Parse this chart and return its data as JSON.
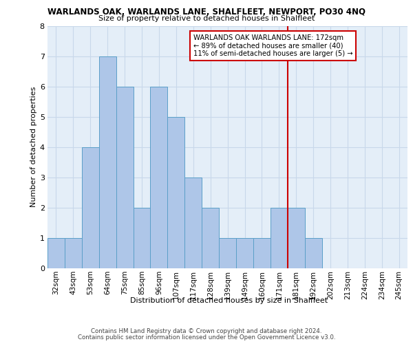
{
  "title": "WARLANDS OAK, WARLANDS LANE, SHALFLEET, NEWPORT, PO30 4NQ",
  "subtitle": "Size of property relative to detached houses in Shalfleet",
  "xlabel": "Distribution of detached houses by size in Shalfleet",
  "ylabel": "Number of detached properties",
  "categories": [
    "32sqm",
    "43sqm",
    "53sqm",
    "64sqm",
    "75sqm",
    "85sqm",
    "96sqm",
    "107sqm",
    "117sqm",
    "128sqm",
    "139sqm",
    "149sqm",
    "160sqm",
    "171sqm",
    "181sqm",
    "192sqm",
    "202sqm",
    "213sqm",
    "224sqm",
    "234sqm",
    "245sqm"
  ],
  "values": [
    1,
    1,
    4,
    7,
    6,
    2,
    6,
    5,
    3,
    2,
    1,
    1,
    1,
    2,
    2,
    1,
    0,
    0,
    0,
    0,
    0
  ],
  "bar_color": "#aec6e8",
  "bar_edge_color": "#5a9fc8",
  "marker_color": "#cc0000",
  "grid_color": "#c8d8ea",
  "background_color": "#e4eef8",
  "ylim": [
    0,
    8
  ],
  "yticks": [
    0,
    1,
    2,
    3,
    4,
    5,
    6,
    7,
    8
  ],
  "marker_idx": 13,
  "marker_label_line1": "WARLANDS OAK WARLANDS LANE: 172sqm",
  "marker_label_line2": "← 89% of detached houses are smaller (40)",
  "marker_label_line3": "11% of semi-detached houses are larger (5) →",
  "footer_line1": "Contains HM Land Registry data © Crown copyright and database right 2024.",
  "footer_line2": "Contains public sector information licensed under the Open Government Licence v3.0."
}
